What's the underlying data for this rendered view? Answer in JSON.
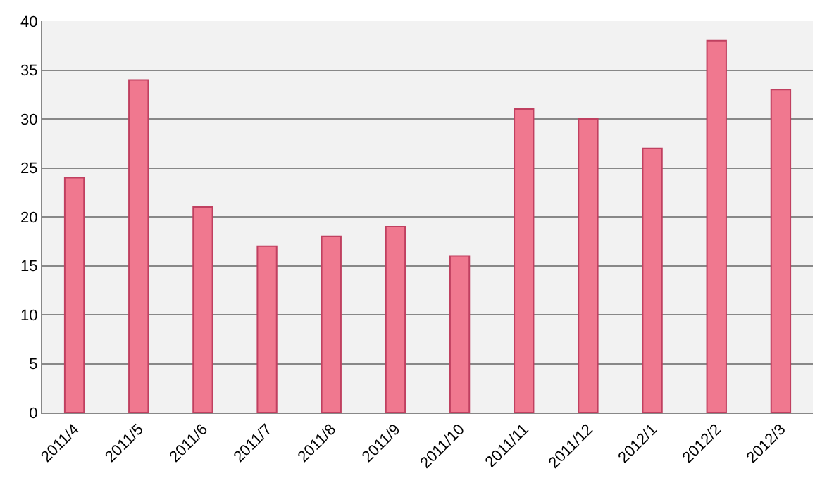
{
  "chart_data": {
    "type": "bar",
    "categories": [
      "2011/4",
      "2011/5",
      "2011/6",
      "2011/7",
      "2011/8",
      "2011/9",
      "2011/10",
      "2011/11",
      "2011/12",
      "2012/1",
      "2012/2",
      "2012/3"
    ],
    "values": [
      24,
      34,
      21,
      17,
      18,
      19,
      16,
      31,
      30,
      27,
      38,
      33
    ],
    "color": "#f0788f",
    "ylim": [
      0,
      40
    ],
    "yticks": [
      0,
      5,
      10,
      15,
      20,
      25,
      30,
      35,
      40
    ],
    "grid": "y"
  }
}
